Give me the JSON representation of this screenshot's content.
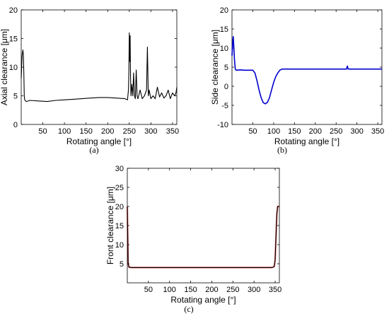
{
  "panels": [
    {
      "caption": "(a)",
      "chart_data": {
        "type": "line",
        "xlabel": "Rotating angle [°]",
        "ylabel": "Axial clearance [μm]",
        "xlim": [
          0,
          360
        ],
        "ylim": [
          0,
          20
        ],
        "xticks": [
          50,
          100,
          150,
          200,
          250,
          300,
          350
        ],
        "yticks": [
          0,
          5,
          10,
          15,
          20
        ],
        "grid": false,
        "series": [
          {
            "color": "#000000",
            "x": [
              0,
              2,
              4,
              5,
              6,
              7,
              8,
              10,
              12,
              20,
              40,
              60,
              80,
              100,
              120,
              140,
              160,
              180,
              200,
              220,
              240,
              246,
              248,
              249,
              250,
              251,
              252,
              253,
              254,
              256,
              258,
              260,
              262,
              264,
              266,
              268,
              270,
              275,
              280,
              285,
              290,
              292,
              294,
              296,
              300,
              305,
              310,
              315,
              320,
              325,
              330,
              335,
              340,
              345,
              350,
              355,
              358,
              360
            ],
            "y": [
              8,
              12,
              13,
              12,
              9,
              5,
              4.3,
              4.1,
              4.0,
              4.2,
              4.1,
              4.0,
              4.2,
              4.3,
              4.4,
              4.5,
              4.6,
              4.7,
              4.7,
              4.6,
              4.5,
              4.3,
              6,
              9,
              16,
              11,
              15.5,
              8,
              5,
              7,
              5,
              9,
              5,
              4.5,
              9.5,
              5,
              4.5,
              6,
              4.5,
              5,
              6,
              13.5,
              5,
              6,
              4.5,
              5,
              4.5,
              6.5,
              4.8,
              5.5,
              4.6,
              5,
              6,
              4.5,
              5.5,
              5,
              5.5,
              6.5
            ]
          }
        ]
      }
    },
    {
      "caption": "(b)",
      "chart_data": {
        "type": "line",
        "xlabel": "Rotating angle [°]",
        "ylabel": "Side clearance [μm]",
        "xlim": [
          0,
          360
        ],
        "ylim": [
          -10,
          20
        ],
        "xticks": [
          50,
          100,
          150,
          200,
          250,
          300,
          350
        ],
        "yticks": [
          -10,
          -5,
          0,
          5,
          10,
          15,
          20
        ],
        "grid": false,
        "series": [
          {
            "color": "#0000cc",
            "x": [
              0,
              2,
              3,
              4,
              6,
              8,
              10,
              20,
              30,
              40,
              50,
              55,
              60,
              65,
              70,
              75,
              80,
              85,
              90,
              95,
              100,
              105,
              110,
              115,
              120,
              130,
              150,
              200,
              250,
              275,
              277,
              279,
              300,
              350,
              360
            ],
            "y": [
              8,
              12,
              13,
              11,
              7,
              4.5,
              4.2,
              4.3,
              4.2,
              4.2,
              4.2,
              3.5,
              1.5,
              -1,
              -3,
              -4.3,
              -4.6,
              -4.2,
              -3,
              -1,
              1,
              2.5,
              3.5,
              4.2,
              4.5,
              4.5,
              4.5,
              4.5,
              4.5,
              4.5,
              5.3,
              4.5,
              4.5,
              4.5,
              4.5
            ]
          }
        ]
      }
    },
    {
      "caption": "(c)",
      "chart_data": {
        "type": "line",
        "xlabel": "Rotating angle [°]",
        "ylabel": "Front clearance [μm]",
        "xlim": [
          0,
          360
        ],
        "ylim": [
          0,
          30
        ],
        "xticks": [
          50,
          100,
          150,
          200,
          250,
          300,
          350
        ],
        "yticks": [
          5,
          10,
          15,
          20,
          25,
          30
        ],
        "grid": false,
        "series": [
          {
            "color": "#000000",
            "highlight": "#cc0000",
            "x": [
              0,
              2,
              4,
              10,
              50,
              100,
              150,
              200,
              250,
              300,
              340,
              345,
              348,
              350,
              352,
              354,
              356,
              360
            ],
            "y": [
              20,
              5,
              4.1,
              4,
              4,
              4,
              4,
              4,
              4,
              4,
              4,
              4.1,
              4.3,
              6,
              12,
              18,
              20,
              20
            ]
          }
        ]
      }
    }
  ]
}
